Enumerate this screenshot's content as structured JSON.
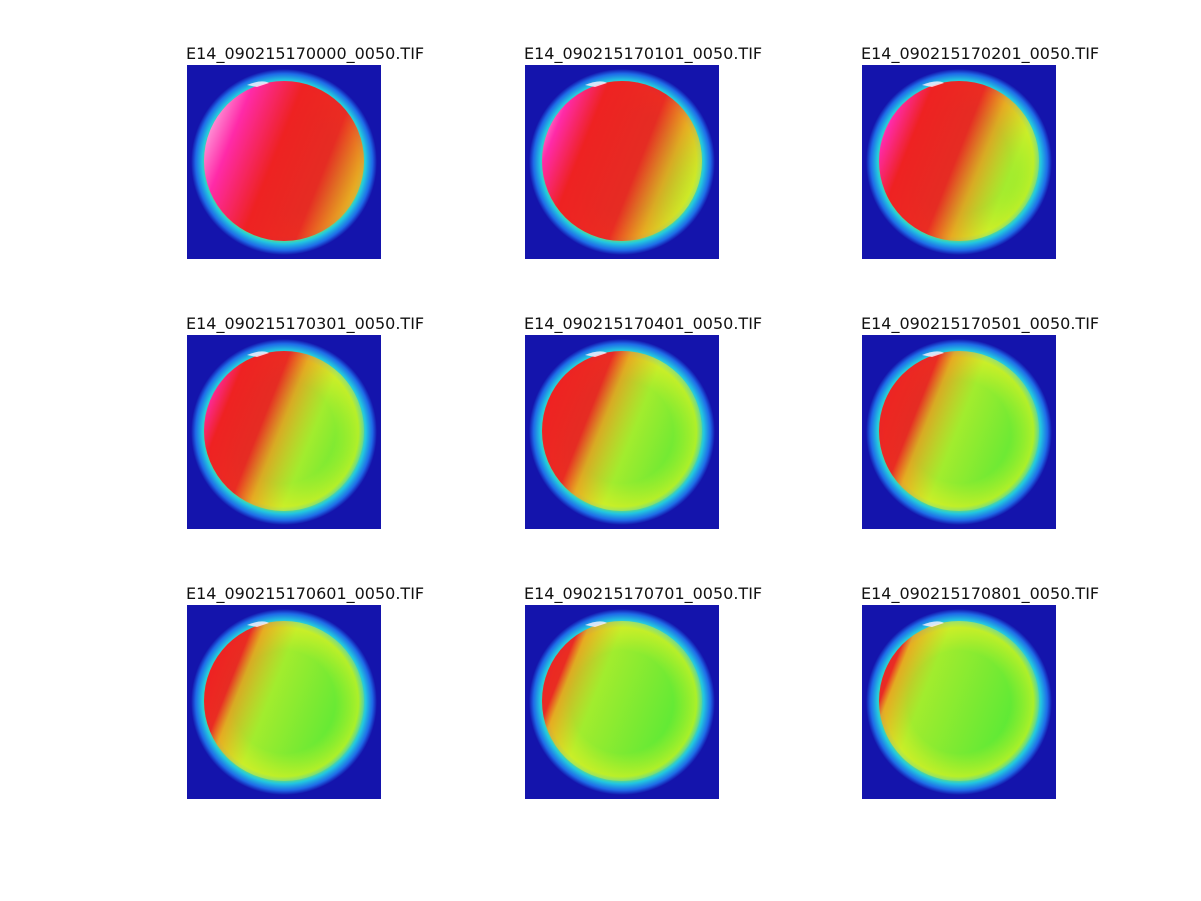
{
  "figure": {
    "panels": [
      {
        "title": "E14_090215170000_0050.TIF",
        "red_extent": 0.86,
        "magenta_extent": 0.45
      },
      {
        "title": "E14_090215170101_0050.TIF",
        "red_extent": 0.72,
        "magenta_extent": 0.3
      },
      {
        "title": "E14_090215170201_0050.TIF",
        "red_extent": 0.6,
        "magenta_extent": 0.25
      },
      {
        "title": "E14_090215170301_0050.TIF",
        "red_extent": 0.48,
        "magenta_extent": 0.2
      },
      {
        "title": "E14_090215170401_0050.TIF",
        "red_extent": 0.4,
        "magenta_extent": 0.12
      },
      {
        "title": "E14_090215170501_0050.TIF",
        "red_extent": 0.34,
        "magenta_extent": 0.06
      },
      {
        "title": "E14_090215170601_0050.TIF",
        "red_extent": 0.28,
        "magenta_extent": 0.12
      },
      {
        "title": "E14_090215170701_0050.TIF",
        "red_extent": 0.22,
        "magenta_extent": 0.04
      },
      {
        "title": "E14_090215170801_0050.TIF",
        "red_extent": 0.18,
        "magenta_extent": 0.03
      }
    ],
    "colors": {
      "background": "#ffffff",
      "image_field": "#1414ac",
      "rim_blue": "#1e6be8",
      "rim_cyan": "#22c7e0",
      "green": "#38e83a",
      "yellow": "#e8ee26",
      "orange": "#f4a020",
      "red": "#ee2222",
      "magenta": "#ff2aa8",
      "white": "#fff0ff"
    }
  }
}
